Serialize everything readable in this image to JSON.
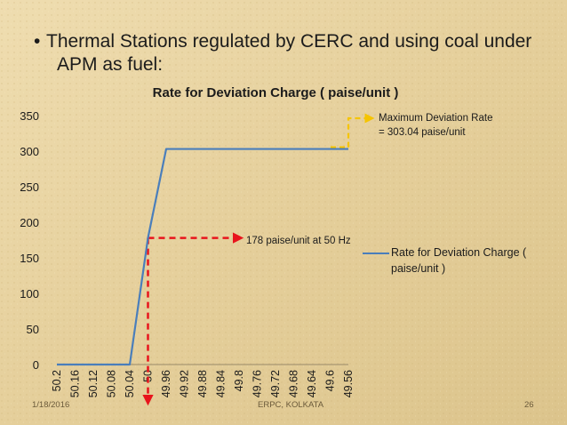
{
  "slide": {
    "bullet_glyph": "•",
    "heading": "Thermal Stations regulated by CERC and using coal under APM as fuel:",
    "footer_date": "1/18/2016",
    "footer_center": "ERPC, KOLKATA",
    "page_number": "26"
  },
  "annotations": {
    "max_rate_line1": "Maximum Deviation Rate",
    "max_rate_line2": "= 303.04 paise/unit",
    "rate_at_50": "178 paise/unit at 50 Hz"
  },
  "colors": {
    "series": "#4a7ebb",
    "red_marker": "#e8141c",
    "yellow_marker": "#f5c400"
  },
  "chart_data": {
    "type": "line",
    "title": "Rate for Deviation Charge ( paise/unit )",
    "xlabel": "",
    "ylabel": "",
    "categories": [
      "50.2",
      "50.16",
      "50.12",
      "50.08",
      "50.04",
      "50",
      "49.96",
      "49.92",
      "49.88",
      "49.84",
      "49.8",
      "49.76",
      "49.72",
      "49.68",
      "49.64",
      "49.6",
      "49.56"
    ],
    "series": [
      {
        "name": "Rate for Deviation Charge ( paise/unit )",
        "values": [
          0,
          0,
          0,
          0,
          0,
          178,
          303.04,
          303.04,
          303.04,
          303.04,
          303.04,
          303.04,
          303.04,
          303.04,
          303.04,
          303.04,
          303.04
        ]
      }
    ],
    "ylim": [
      0,
      350
    ],
    "yticks": [
      0,
      50,
      100,
      150,
      200,
      250,
      300,
      350
    ],
    "grid": false,
    "legend": "right",
    "highlight_points": [
      {
        "x": "50",
        "y": 178
      },
      {
        "x": "49.56",
        "y": 303.04
      }
    ]
  }
}
